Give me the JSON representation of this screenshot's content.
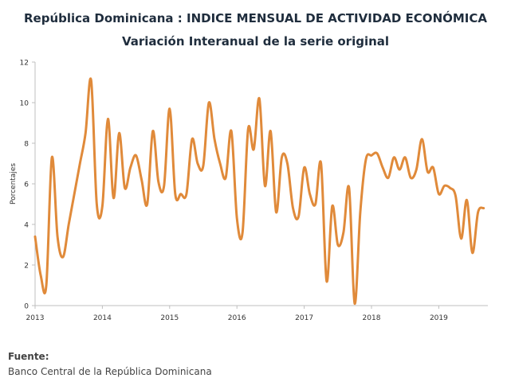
{
  "header": {
    "title": "República Dominicana : INDICE MENSUAL DE ACTIVIDAD ECONÓMICA",
    "subtitle": "Variación Interanual de la serie original"
  },
  "footer": {
    "source_label": "Fuente:",
    "source_text": "Banco Central de la República Dominicana"
  },
  "chart_data": {
    "type": "line",
    "title": "República Dominicana : INDICE MENSUAL DE ACTIVIDAD ECONÓMICA",
    "subtitle": "Variación Interanual de la serie original",
    "xlabel": "",
    "ylabel": "Porcentajes",
    "ylim": [
      0,
      12
    ],
    "yticks": [
      0,
      2,
      4,
      6,
      8,
      10,
      12
    ],
    "xticks": [
      "2013",
      "2014",
      "2015",
      "2016",
      "2017",
      "2018",
      "2019"
    ],
    "grid": false,
    "legend": "none",
    "line_color": "#e08a3a",
    "series": [
      {
        "values": [
          3.4,
          1.5,
          1.0,
          7.3,
          3.4,
          2.4,
          4.0,
          5.5,
          7.0,
          8.5,
          11.1,
          5.0,
          4.9,
          9.2,
          5.3,
          8.5,
          5.8,
          6.8,
          7.4,
          6.2,
          5.0,
          8.6,
          6.1,
          5.9,
          9.7,
          5.5,
          5.5,
          5.5,
          8.2,
          7.0,
          6.9,
          10.0,
          8.2,
          7.0,
          6.3,
          8.6,
          4.3,
          3.6,
          8.7,
          7.7,
          10.2,
          5.9,
          8.6,
          4.6,
          7.3,
          7.0,
          4.8,
          4.4,
          6.8,
          5.5,
          5.0,
          7.0,
          1.2,
          4.9,
          3.0,
          3.6,
          5.8,
          0.1,
          4.6,
          7.2,
          7.4,
          7.5,
          6.8,
          6.3,
          7.3,
          6.7,
          7.3,
          6.3,
          6.7,
          8.2,
          6.6,
          6.8,
          5.5,
          5.9,
          5.8,
          5.4,
          3.3,
          5.2,
          2.6,
          4.6,
          4.8
        ]
      }
    ]
  }
}
